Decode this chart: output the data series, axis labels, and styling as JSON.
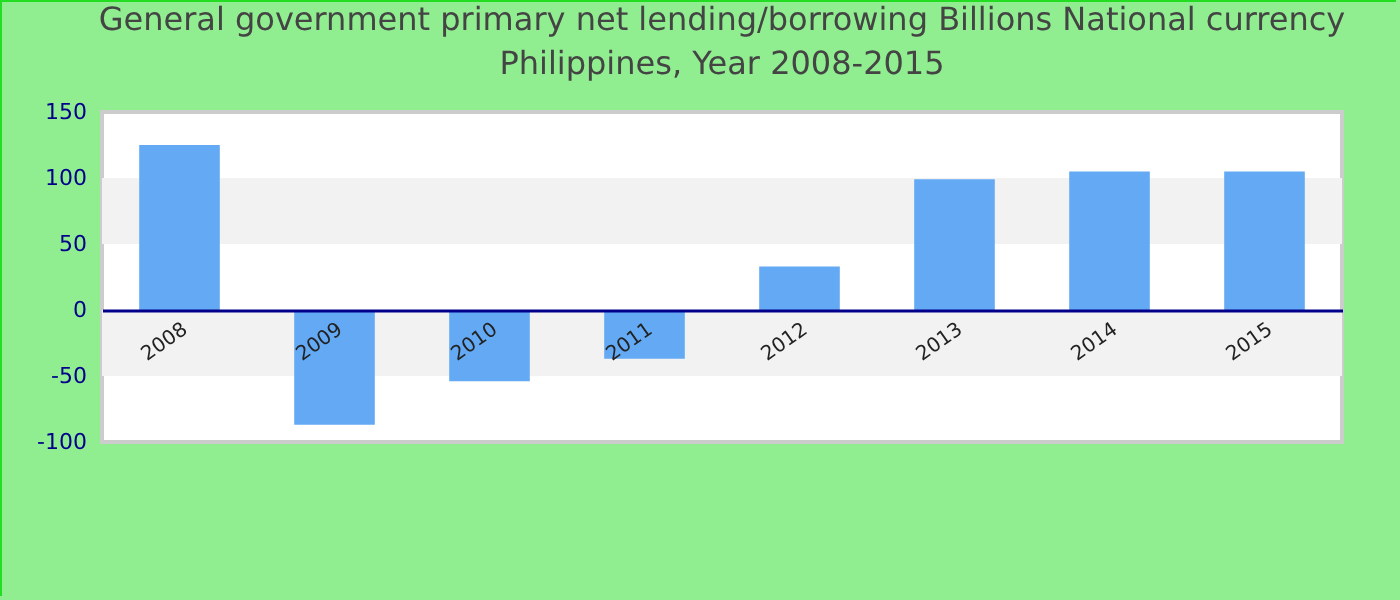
{
  "chart_data": {
    "type": "bar",
    "title": "General government primary net lending/borrowing Billions National currency",
    "subtitle": "Philippines, Year 2008-2015",
    "categories": [
      "2008",
      "2009",
      "2010",
      "2011",
      "2012",
      "2013",
      "2014",
      "2015"
    ],
    "values": [
      125,
      -87,
      -54,
      -37,
      33,
      99,
      105,
      105
    ],
    "color": "#63a9f4",
    "ylim": [
      -100,
      150
    ],
    "yticks": [
      -100,
      -50,
      0,
      50,
      100,
      150
    ],
    "bands": [
      {
        "axis": "y",
        "from": 50,
        "to": 100,
        "color": "#f2f2f2"
      },
      {
        "axis": "y",
        "from": -50,
        "to": 0,
        "color": "#f2f2f2"
      }
    ]
  }
}
